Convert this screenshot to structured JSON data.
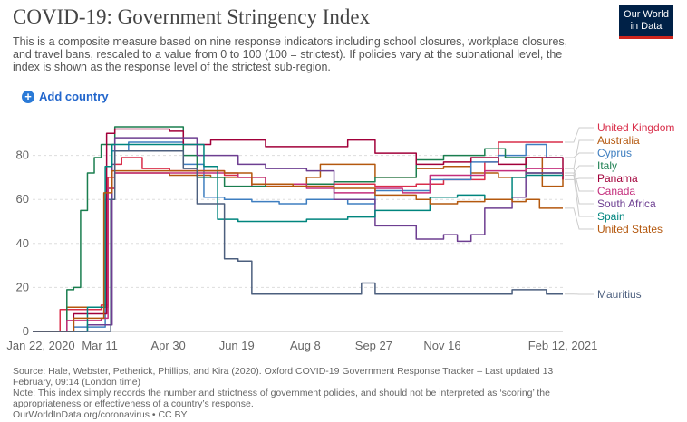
{
  "header": {
    "title": "COVID-19: Government Stringency Index",
    "subtitle": "This is a composite measure based on nine response indicators including school closures, workplace closures, and travel bans, rescaled to a value from 0 to 100 (100 = strictest). If policies vary at the subnational level, the index is shown as the response level of the strictest sub-region.",
    "logo_line1": "Our World",
    "logo_line2": "in Data",
    "add_country_label": "Add country",
    "add_icon": "plus-circle-icon"
  },
  "footer": {
    "source": "Source: Hale, Webster, Petherick, Phillips, and Kira (2020). Oxford COVID-19 Government Response Tracker – Last updated 13 February, 09:14 (London time)",
    "note": "Note: This index simply records the number and strictness of government policies, and should not be interpreted as ‘scoring’ the appropriateness or effectiveness of a country’s response.",
    "credit": "OurWorldInData.org/coronavirus • CC BY"
  },
  "chart_data": {
    "type": "line",
    "x_tick_labels": [
      "Jan 22, 2020",
      "Mar 11",
      "Apr 30",
      "Jun 19",
      "Aug 8",
      "Sep 27",
      "Nov 16",
      "Feb 12, 2021"
    ],
    "x_tick_days": [
      0,
      49,
      99,
      149,
      199,
      249,
      299,
      387
    ],
    "x_range_days": [
      0,
      387
    ],
    "y_ticks": [
      0,
      20,
      40,
      60,
      80
    ],
    "ylim": [
      0,
      100
    ],
    "grid": true,
    "legend": "right",
    "series": [
      {
        "name": "United Kingdom",
        "color": "#d92e4a",
        "points": [
          [
            0,
            0
          ],
          [
            20,
            10
          ],
          [
            50,
            12
          ],
          [
            55,
            70
          ],
          [
            60,
            76
          ],
          [
            65,
            79
          ],
          [
            70,
            79
          ],
          [
            80,
            74
          ],
          [
            100,
            73
          ],
          [
            140,
            71
          ],
          [
            150,
            70
          ],
          [
            160,
            66
          ],
          [
            190,
            66
          ],
          [
            220,
            67
          ],
          [
            250,
            66
          ],
          [
            280,
            67
          ],
          [
            300,
            69
          ],
          [
            330,
            77
          ],
          [
            340,
            86
          ],
          [
            387,
            86
          ]
        ]
      },
      {
        "name": "Australia",
        "color": "#b4580e",
        "points": [
          [
            0,
            0
          ],
          [
            25,
            11
          ],
          [
            50,
            11
          ],
          [
            55,
            65
          ],
          [
            60,
            72
          ],
          [
            65,
            72
          ],
          [
            80,
            72
          ],
          [
            100,
            71
          ],
          [
            130,
            70
          ],
          [
            150,
            70
          ],
          [
            170,
            66
          ],
          [
            180,
            66
          ],
          [
            200,
            70
          ],
          [
            210,
            76
          ],
          [
            240,
            76
          ],
          [
            250,
            70
          ],
          [
            280,
            74
          ],
          [
            300,
            75
          ],
          [
            320,
            72
          ],
          [
            340,
            70
          ],
          [
            360,
            79
          ],
          [
            372,
            66
          ],
          [
            387,
            74
          ]
        ]
      },
      {
        "name": "Cyprus",
        "color": "#3e7ec0",
        "points": [
          [
            0,
            0
          ],
          [
            30,
            2
          ],
          [
            50,
            2
          ],
          [
            53,
            60
          ],
          [
            58,
            82
          ],
          [
            70,
            86
          ],
          [
            100,
            86
          ],
          [
            110,
            76
          ],
          [
            125,
            61
          ],
          [
            140,
            60
          ],
          [
            160,
            59
          ],
          [
            180,
            58
          ],
          [
            200,
            60
          ],
          [
            230,
            58
          ],
          [
            250,
            64
          ],
          [
            270,
            64
          ],
          [
            290,
            69
          ],
          [
            320,
            77
          ],
          [
            340,
            80
          ],
          [
            360,
            85
          ],
          [
            375,
            79
          ],
          [
            387,
            79
          ]
        ]
      },
      {
        "name": "Italy",
        "color": "#1a7e4f",
        "points": [
          [
            0,
            0
          ],
          [
            25,
            19
          ],
          [
            30,
            20
          ],
          [
            35,
            55
          ],
          [
            40,
            72
          ],
          [
            45,
            79
          ],
          [
            50,
            85
          ],
          [
            60,
            93
          ],
          [
            100,
            93
          ],
          [
            110,
            80
          ],
          [
            120,
            70
          ],
          [
            140,
            66
          ],
          [
            170,
            67
          ],
          [
            220,
            68
          ],
          [
            250,
            70
          ],
          [
            280,
            78
          ],
          [
            300,
            80
          ],
          [
            320,
            80
          ],
          [
            330,
            83
          ],
          [
            345,
            79
          ],
          [
            360,
            72
          ],
          [
            387,
            72
          ]
        ]
      },
      {
        "name": "Panama",
        "color": "#a2003a",
        "points": [
          [
            0,
            0
          ],
          [
            30,
            8
          ],
          [
            50,
            8
          ],
          [
            54,
            90
          ],
          [
            60,
            92
          ],
          [
            100,
            91
          ],
          [
            110,
            85
          ],
          [
            130,
            87
          ],
          [
            150,
            87
          ],
          [
            170,
            84
          ],
          [
            200,
            84
          ],
          [
            230,
            87
          ],
          [
            250,
            81
          ],
          [
            280,
            76
          ],
          [
            300,
            77
          ],
          [
            320,
            79
          ],
          [
            340,
            76
          ],
          [
            360,
            79
          ],
          [
            387,
            69
          ]
        ]
      },
      {
        "name": "Canada",
        "color": "#c42e7c",
        "points": [
          [
            0,
            0
          ],
          [
            25,
            5
          ],
          [
            50,
            6
          ],
          [
            55,
            65
          ],
          [
            60,
            72
          ],
          [
            100,
            72
          ],
          [
            130,
            72
          ],
          [
            150,
            70
          ],
          [
            170,
            67
          ],
          [
            200,
            65
          ],
          [
            220,
            63
          ],
          [
            250,
            65
          ],
          [
            270,
            63
          ],
          [
            290,
            71
          ],
          [
            310,
            71
          ],
          [
            330,
            73
          ],
          [
            360,
            74
          ],
          [
            387,
            74
          ]
        ]
      },
      {
        "name": "South Africa",
        "color": "#6d3e91",
        "points": [
          [
            0,
            0
          ],
          [
            40,
            3
          ],
          [
            55,
            3
          ],
          [
            58,
            76
          ],
          [
            60,
            88
          ],
          [
            100,
            88
          ],
          [
            120,
            80
          ],
          [
            150,
            76
          ],
          [
            170,
            74
          ],
          [
            200,
            73
          ],
          [
            220,
            60
          ],
          [
            250,
            48
          ],
          [
            280,
            42
          ],
          [
            300,
            44
          ],
          [
            310,
            41
          ],
          [
            320,
            44
          ],
          [
            330,
            56
          ],
          [
            340,
            56
          ],
          [
            350,
            61
          ],
          [
            360,
            72
          ],
          [
            387,
            72
          ]
        ]
      },
      {
        "name": "Spain",
        "color": "#00857e",
        "points": [
          [
            0,
            0
          ],
          [
            40,
            11
          ],
          [
            50,
            11
          ],
          [
            53,
            75
          ],
          [
            58,
            85
          ],
          [
            100,
            85
          ],
          [
            125,
            75
          ],
          [
            135,
            51
          ],
          [
            150,
            50
          ],
          [
            200,
            51
          ],
          [
            230,
            52
          ],
          [
            250,
            55
          ],
          [
            270,
            55
          ],
          [
            290,
            61
          ],
          [
            310,
            62
          ],
          [
            330,
            60
          ],
          [
            350,
            70
          ],
          [
            360,
            71
          ],
          [
            387,
            71
          ]
        ]
      },
      {
        "name": "United States",
        "color": "#b4580e",
        "points": [
          [
            0,
            0
          ],
          [
            30,
            6
          ],
          [
            50,
            6
          ],
          [
            52,
            63
          ],
          [
            58,
            73
          ],
          [
            100,
            73
          ],
          [
            140,
            72
          ],
          [
            160,
            67
          ],
          [
            190,
            66
          ],
          [
            220,
            65
          ],
          [
            250,
            62
          ],
          [
            270,
            62
          ],
          [
            280,
            60
          ],
          [
            290,
            58
          ],
          [
            310,
            59
          ],
          [
            330,
            60
          ],
          [
            350,
            59
          ],
          [
            360,
            60
          ],
          [
            370,
            56
          ],
          [
            387,
            56
          ]
        ]
      },
      {
        "name": "Mauritius",
        "color": "#4c5f7e",
        "points": [
          [
            0,
            0
          ],
          [
            55,
            0
          ],
          [
            57,
            60
          ],
          [
            60,
            82
          ],
          [
            80,
            82
          ],
          [
            100,
            82
          ],
          [
            110,
            74
          ],
          [
            120,
            58
          ],
          [
            140,
            33
          ],
          [
            150,
            32
          ],
          [
            160,
            17
          ],
          [
            180,
            17
          ],
          [
            220,
            17
          ],
          [
            240,
            22
          ],
          [
            250,
            17
          ],
          [
            280,
            17
          ],
          [
            300,
            17
          ],
          [
            340,
            17
          ],
          [
            350,
            19
          ],
          [
            375,
            17
          ],
          [
            387,
            17
          ]
        ]
      }
    ]
  }
}
